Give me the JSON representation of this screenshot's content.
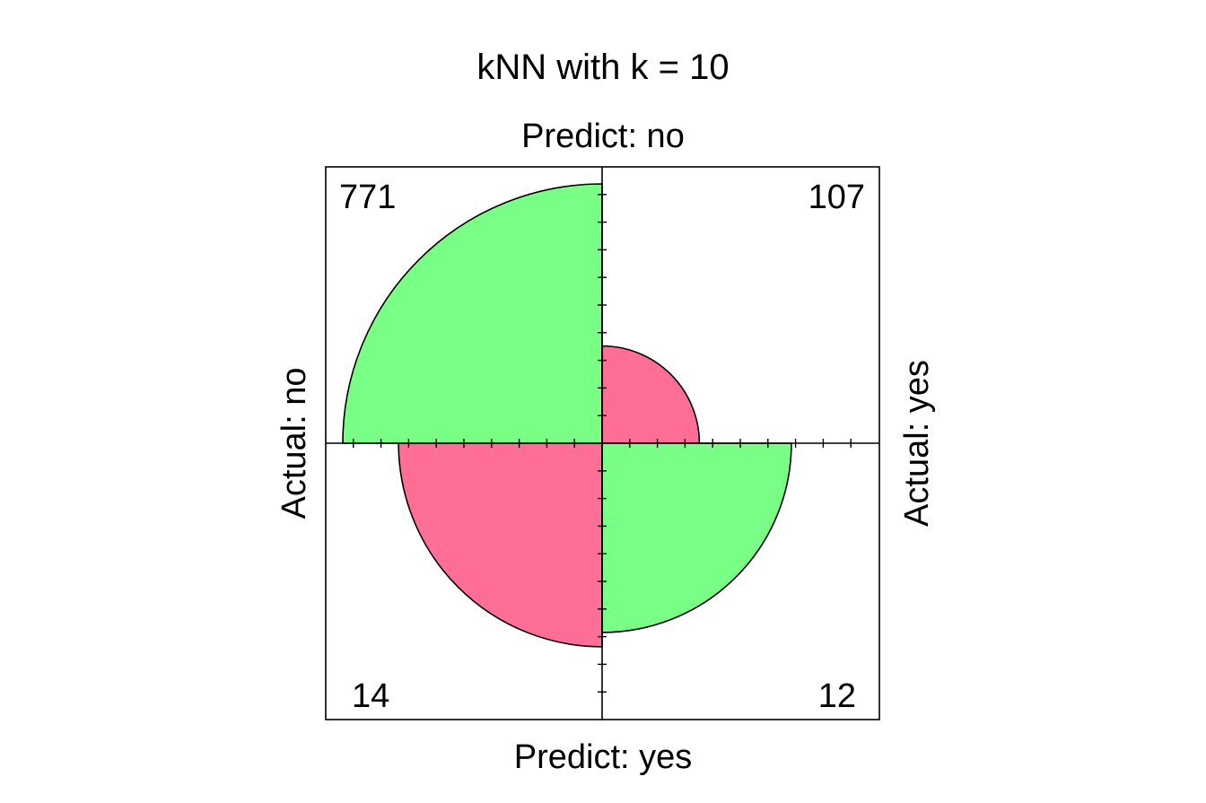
{
  "chart_data": {
    "type": "fourfold",
    "title": "kNN with k = 10",
    "labels": {
      "top": "Predict: no",
      "bottom": "Predict: yes",
      "left": "Actual: no",
      "right": "Actual: yes"
    },
    "cells": [
      {
        "id": "actual-no-predict-no",
        "value": 771,
        "count_label": "771",
        "correct": true
      },
      {
        "id": "actual-yes-predict-no",
        "value": 107,
        "count_label": "107",
        "correct": false
      },
      {
        "id": "actual-no-predict-yes",
        "value": 14,
        "count_label": "14",
        "correct": false
      },
      {
        "id": "actual-yes-predict-yes",
        "value": 12,
        "count_label": "12",
        "correct": true
      }
    ],
    "relative_radii": {
      "actual-no-predict-no": 1.0,
      "actual-yes-predict-no": 0.375,
      "actual-no-predict-yes": 0.785,
      "actual-yes-predict-yes": 0.73
    },
    "colors": {
      "correct": "#79FF86",
      "incorrect": "#FF6E96",
      "frame": "#000000"
    },
    "grid": false
  }
}
